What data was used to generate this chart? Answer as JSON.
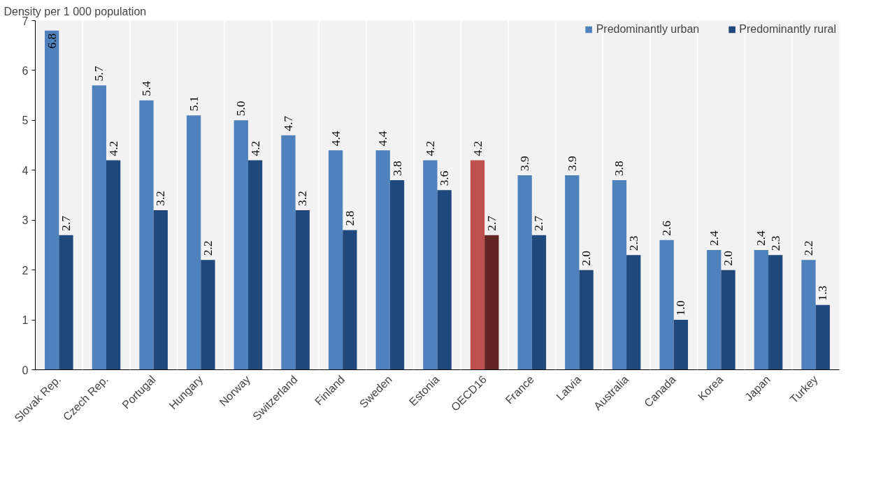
{
  "chart_data": {
    "type": "bar",
    "ylabel": "Density per 1 000 population",
    "categories": [
      "Slovak Rep.",
      "Czech Rep.",
      "Portugal",
      "Hungary",
      "Norway",
      "Switzerland",
      "Finland",
      "Sweden",
      "Estonia",
      "OECD16",
      "France",
      "Latvia",
      "Australia",
      "Canada",
      "Korea",
      "Japan",
      "Turkey"
    ],
    "series": [
      {
        "name": "Predominantly urban",
        "colors": [
          "#4f81bd",
          "#4f81bd",
          "#4f81bd",
          "#4f81bd",
          "#4f81bd",
          "#4f81bd",
          "#4f81bd",
          "#4f81bd",
          "#4f81bd",
          "#c0504d",
          "#4f81bd",
          "#4f81bd",
          "#4f81bd",
          "#4f81bd",
          "#4f81bd",
          "#4f81bd",
          "#4f81bd"
        ],
        "values": [
          6.8,
          5.7,
          5.4,
          5.1,
          5.0,
          4.7,
          4.4,
          4.4,
          4.2,
          4.2,
          3.9,
          3.9,
          3.8,
          2.6,
          2.4,
          2.4,
          2.2
        ],
        "value_labels": [
          "6.8",
          "5.7",
          "5.4",
          "5.1",
          "5.0",
          "4.7",
          "4.4",
          "4.4",
          "4.2",
          "4.2",
          "3.9",
          "3.9",
          "3.8",
          "2.6",
          "2.4",
          "2.4",
          "2.2"
        ]
      },
      {
        "name": "Predominantly rural",
        "colors": [
          "#1f497d",
          "#1f497d",
          "#1f497d",
          "#1f497d",
          "#1f497d",
          "#1f497d",
          "#1f497d",
          "#1f497d",
          "#1f497d",
          "#632523",
          "#1f497d",
          "#1f497d",
          "#1f497d",
          "#1f497d",
          "#1f497d",
          "#1f497d",
          "#1f497d"
        ],
        "values": [
          2.7,
          4.2,
          3.2,
          2.2,
          4.2,
          3.2,
          2.8,
          3.8,
          3.6,
          2.7,
          2.7,
          2.0,
          2.3,
          1.0,
          2.0,
          2.3,
          1.3
        ],
        "value_labels": [
          "2.7",
          "4.2",
          "3.2",
          "2.2",
          "4.2",
          "3.2",
          "2.8",
          "3.8",
          "3.6",
          "2.7",
          "2.7",
          "2.0",
          "2.3",
          "1.0",
          "2.0",
          "2.3",
          "1.3"
        ]
      }
    ],
    "ylim": [
      0,
      7
    ],
    "yticks": [
      0,
      1,
      2,
      3,
      4,
      5,
      6,
      7
    ],
    "grid": "x",
    "legend": "top right",
    "data_labels": true
  }
}
